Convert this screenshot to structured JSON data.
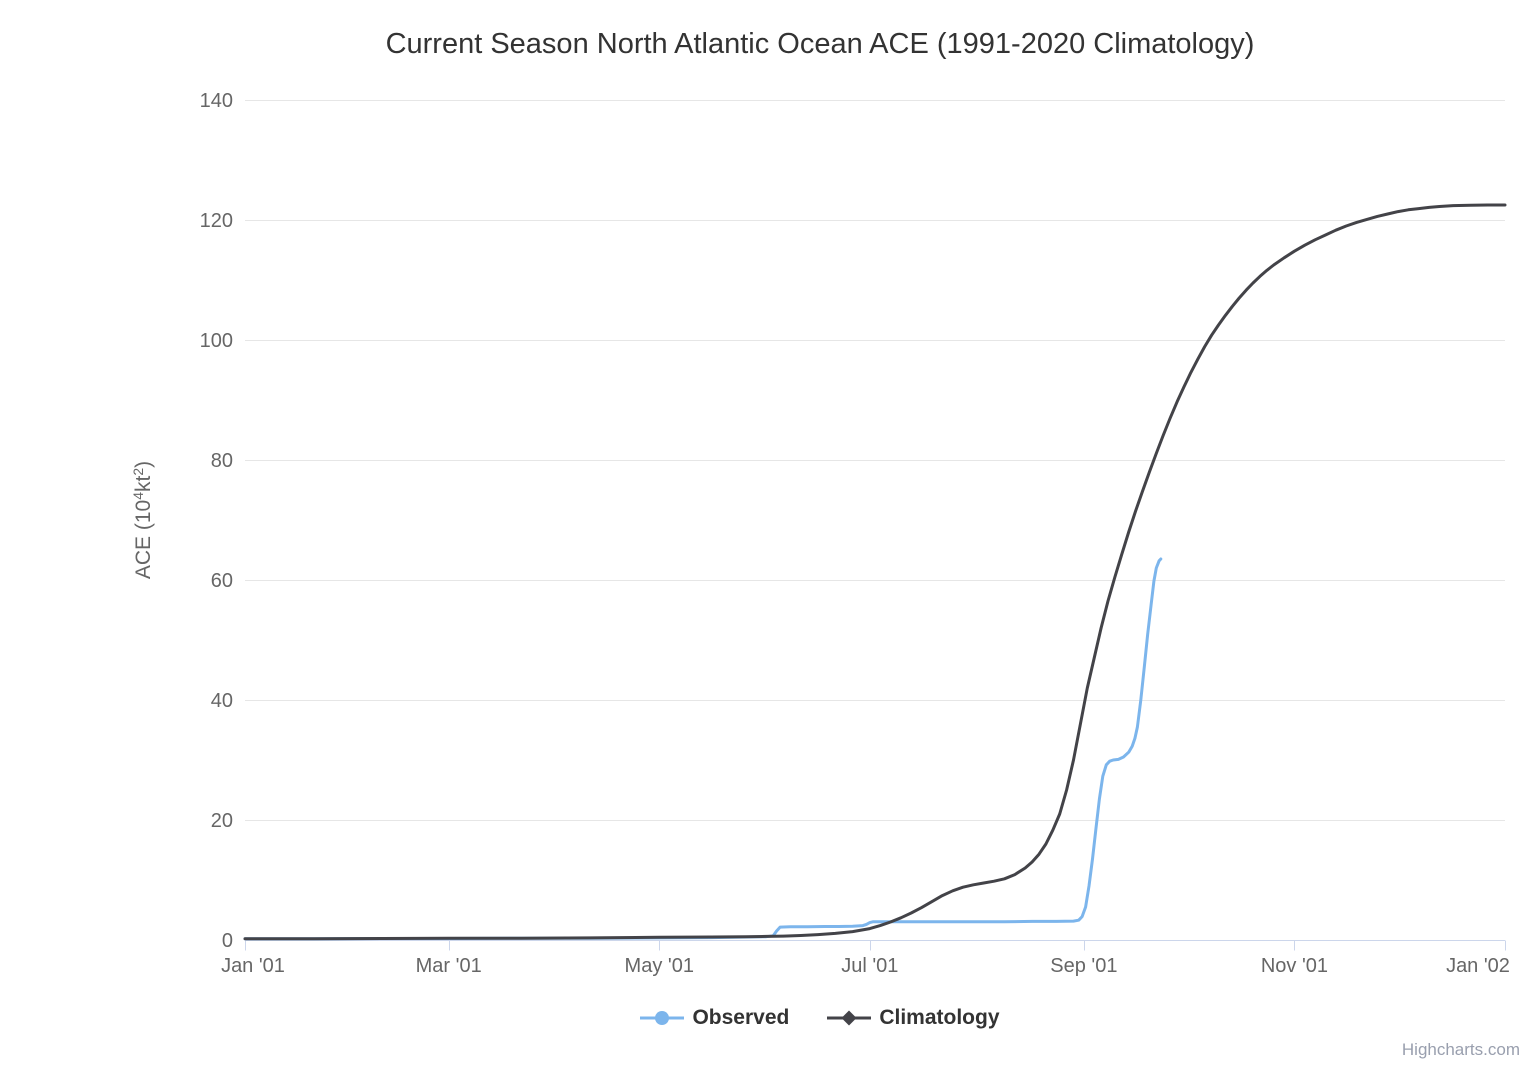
{
  "title": "Current Season North Atlantic Ocean ACE (1991-2020 Climatology)",
  "credits": "Highcharts.com",
  "colors": {
    "observed": "#7cb5ec",
    "climatology": "#434348",
    "gridline": "#e6e6e6",
    "axis_line": "#ccd6eb",
    "tick_label": "#666666",
    "title_text": "#333333",
    "legend_text": "#333333",
    "credits_text": "#999fae",
    "background": "#ffffff"
  },
  "legend": {
    "items": [
      {
        "label": "Observed",
        "color": "#7cb5ec",
        "marker": "circle"
      },
      {
        "label": "Climatology",
        "color": "#434348",
        "marker": "diamond"
      }
    ]
  },
  "chart_data": {
    "type": "line",
    "title": "Current Season North Atlantic Ocean ACE (1991-2020 Climatology)",
    "xlabel": "",
    "ylabel": "ACE (10⁴kt²)",
    "ylabel_parts": [
      {
        "text": "ACE (10"
      },
      {
        "text": "4",
        "super": true
      },
      {
        "text": "kt"
      },
      {
        "text": "2",
        "super": true
      },
      {
        "text": ")"
      }
    ],
    "ylim": [
      0,
      140
    ],
    "y_ticks": [
      0,
      20,
      40,
      60,
      80,
      100,
      120,
      140
    ],
    "grid": "horizontal-only",
    "legend_position": "bottom-center",
    "x_axis": {
      "unit": "day of year (0 = Jan 1 '01, 365 = Jan 1 '02)",
      "range_days": [
        0,
        365
      ],
      "ticks": [
        {
          "label": "Jan '01",
          "day": 0
        },
        {
          "label": "Mar '01",
          "day": 59
        },
        {
          "label": "May '01",
          "day": 120
        },
        {
          "label": "Jul '01",
          "day": 181
        },
        {
          "label": "Sep '01",
          "day": 243
        },
        {
          "label": "Nov '01",
          "day": 304
        },
        {
          "label": "Jan '02",
          "day": 365
        }
      ]
    },
    "series": [
      {
        "name": "Observed",
        "color": "#7cb5ec",
        "line_width": 3,
        "points": [
          [
            0,
            0.2
          ],
          [
            20,
            0.2
          ],
          [
            40,
            0.25
          ],
          [
            60,
            0.25
          ],
          [
            80,
            0.3
          ],
          [
            100,
            0.3
          ],
          [
            120,
            0.35
          ],
          [
            135,
            0.4
          ],
          [
            146,
            0.5
          ],
          [
            151,
            0.55
          ],
          [
            153,
            0.7
          ],
          [
            154,
            1.5
          ],
          [
            155,
            2.15
          ],
          [
            158,
            2.2
          ],
          [
            163,
            2.2
          ],
          [
            168,
            2.25
          ],
          [
            172,
            2.25
          ],
          [
            176,
            2.3
          ],
          [
            179,
            2.4
          ],
          [
            180,
            2.6
          ],
          [
            181,
            2.9
          ],
          [
            182,
            3.05
          ],
          [
            188,
            3.05
          ],
          [
            196,
            3.05
          ],
          [
            204,
            3.05
          ],
          [
            212,
            3.05
          ],
          [
            220,
            3.05
          ],
          [
            228,
            3.1
          ],
          [
            235,
            3.1
          ],
          [
            240,
            3.15
          ],
          [
            241.5,
            3.3
          ],
          [
            242.5,
            3.9
          ],
          [
            243.5,
            5.5
          ],
          [
            244.5,
            9
          ],
          [
            245.5,
            13.5
          ],
          [
            246.5,
            18.5
          ],
          [
            247.5,
            23.5
          ],
          [
            248.5,
            27.3
          ],
          [
            249.5,
            29.2
          ],
          [
            250.5,
            29.8
          ],
          [
            251.5,
            30
          ],
          [
            253,
            30.1
          ],
          [
            254.5,
            30.5
          ],
          [
            256,
            31.3
          ],
          [
            257,
            32.3
          ],
          [
            257.8,
            33.6
          ],
          [
            258.5,
            35.5
          ],
          [
            259.5,
            40
          ],
          [
            260.5,
            45.5
          ],
          [
            261.5,
            51
          ],
          [
            262.5,
            56
          ],
          [
            263.3,
            59.8
          ],
          [
            264,
            62
          ],
          [
            264.8,
            63.2
          ],
          [
            265.3,
            63.5
          ]
        ]
      },
      {
        "name": "Climatology",
        "color": "#434348",
        "line_width": 3,
        "points": [
          [
            0,
            0.2
          ],
          [
            20,
            0.2
          ],
          [
            40,
            0.25
          ],
          [
            59,
            0.3
          ],
          [
            80,
            0.3
          ],
          [
            100,
            0.35
          ],
          [
            120,
            0.45
          ],
          [
            135,
            0.5
          ],
          [
            145,
            0.55
          ],
          [
            151,
            0.6
          ],
          [
            156,
            0.65
          ],
          [
            161,
            0.75
          ],
          [
            166,
            0.9
          ],
          [
            171,
            1.1
          ],
          [
            176,
            1.4
          ],
          [
            181,
            1.9
          ],
          [
            184,
            2.4
          ],
          [
            187,
            3.0
          ],
          [
            190,
            3.7
          ],
          [
            193,
            4.5
          ],
          [
            196,
            5.4
          ],
          [
            199,
            6.4
          ],
          [
            202,
            7.4
          ],
          [
            205,
            8.2
          ],
          [
            208,
            8.8
          ],
          [
            211,
            9.2
          ],
          [
            214,
            9.5
          ],
          [
            217,
            9.8
          ],
          [
            220,
            10.2
          ],
          [
            223,
            10.9
          ],
          [
            226,
            12
          ],
          [
            228,
            13
          ],
          [
            230,
            14.3
          ],
          [
            232,
            16
          ],
          [
            234,
            18.3
          ],
          [
            236,
            21
          ],
          [
            238,
            25
          ],
          [
            240,
            30
          ],
          [
            242,
            36
          ],
          [
            244,
            42
          ],
          [
            246,
            47
          ],
          [
            248,
            52
          ],
          [
            250,
            56.5
          ],
          [
            252,
            60.5
          ],
          [
            254,
            64.3
          ],
          [
            256,
            68
          ],
          [
            258,
            71.5
          ],
          [
            260,
            74.8
          ],
          [
            262,
            78
          ],
          [
            264,
            81.1
          ],
          [
            266,
            84.1
          ],
          [
            268,
            87
          ],
          [
            270,
            89.7
          ],
          [
            272,
            92.2
          ],
          [
            274,
            94.6
          ],
          [
            276,
            96.8
          ],
          [
            278,
            98.9
          ],
          [
            280,
            100.8
          ],
          [
            282,
            102.5
          ],
          [
            284,
            104.1
          ],
          [
            286,
            105.6
          ],
          [
            288,
            107
          ],
          [
            290,
            108.3
          ],
          [
            292,
            109.5
          ],
          [
            294,
            110.6
          ],
          [
            296,
            111.6
          ],
          [
            298,
            112.5
          ],
          [
            301,
            113.7
          ],
          [
            304,
            114.8
          ],
          [
            307,
            115.8
          ],
          [
            310,
            116.7
          ],
          [
            313,
            117.5
          ],
          [
            316,
            118.3
          ],
          [
            319,
            119
          ],
          [
            322,
            119.6
          ],
          [
            325,
            120.1
          ],
          [
            328,
            120.6
          ],
          [
            331,
            121
          ],
          [
            334,
            121.4
          ],
          [
            337,
            121.7
          ],
          [
            340,
            121.9
          ],
          [
            343,
            122.1
          ],
          [
            346,
            122.25
          ],
          [
            350,
            122.4
          ],
          [
            355,
            122.45
          ],
          [
            360,
            122.5
          ],
          [
            365,
            122.5
          ]
        ]
      }
    ]
  }
}
